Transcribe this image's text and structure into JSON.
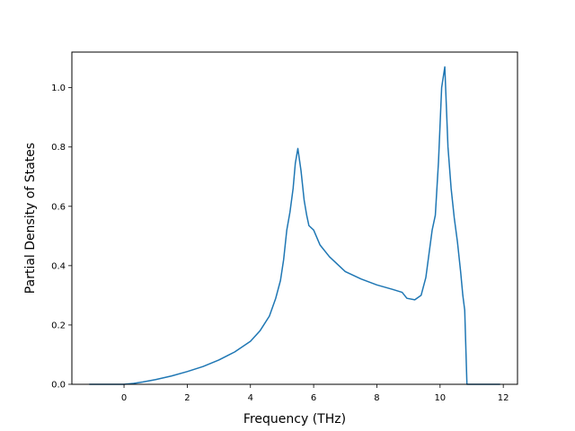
{
  "chart_data": {
    "type": "line",
    "title": "",
    "xlabel": "Frequency (THz)",
    "ylabel": "Partial Density of States",
    "xlim": [
      -1.65,
      12.45
    ],
    "ylim": [
      0,
      1.12
    ],
    "x_ticks": [
      0,
      2,
      4,
      6,
      8,
      10,
      12
    ],
    "y_ticks": [
      0.0,
      0.2,
      0.4,
      0.6,
      0.8,
      1.0
    ],
    "x_tick_labels": [
      "0",
      "2",
      "4",
      "6",
      "8",
      "10",
      "12"
    ],
    "y_tick_labels": [
      "0.0",
      "0.2",
      "0.4",
      "0.6",
      "0.8",
      "1.0"
    ],
    "grid": false,
    "line_color": "#1f77b4",
    "series": [
      {
        "x": [
          -1.1,
          -0.5,
          0.0,
          0.3,
          0.6,
          1.0,
          1.5,
          2.0,
          2.5,
          3.0,
          3.5,
          4.0,
          4.3,
          4.6,
          4.8,
          4.95,
          5.05,
          5.15,
          5.25,
          5.35,
          5.42,
          5.5,
          5.6,
          5.7,
          5.78,
          5.85,
          6.0,
          6.2,
          6.5,
          7.0,
          7.5,
          8.0,
          8.5,
          8.8,
          8.95,
          9.2,
          9.4,
          9.55,
          9.65,
          9.75,
          9.85,
          9.95,
          10.05,
          10.15,
          10.25,
          10.35,
          10.45,
          10.55,
          10.65,
          10.72,
          10.78,
          10.85,
          11.0,
          11.5,
          11.9
        ],
        "y": [
          0.0,
          0.0,
          0.0,
          0.003,
          0.008,
          0.016,
          0.028,
          0.043,
          0.06,
          0.082,
          0.109,
          0.145,
          0.18,
          0.23,
          0.29,
          0.35,
          0.42,
          0.52,
          0.58,
          0.66,
          0.745,
          0.795,
          0.72,
          0.62,
          0.57,
          0.535,
          0.52,
          0.47,
          0.43,
          0.38,
          0.355,
          0.335,
          0.32,
          0.31,
          0.29,
          0.285,
          0.3,
          0.36,
          0.44,
          0.52,
          0.57,
          0.75,
          1.0,
          1.07,
          0.8,
          0.66,
          0.56,
          0.48,
          0.38,
          0.3,
          0.25,
          0.0,
          0.0,
          0.0,
          0.0
        ]
      }
    ]
  }
}
